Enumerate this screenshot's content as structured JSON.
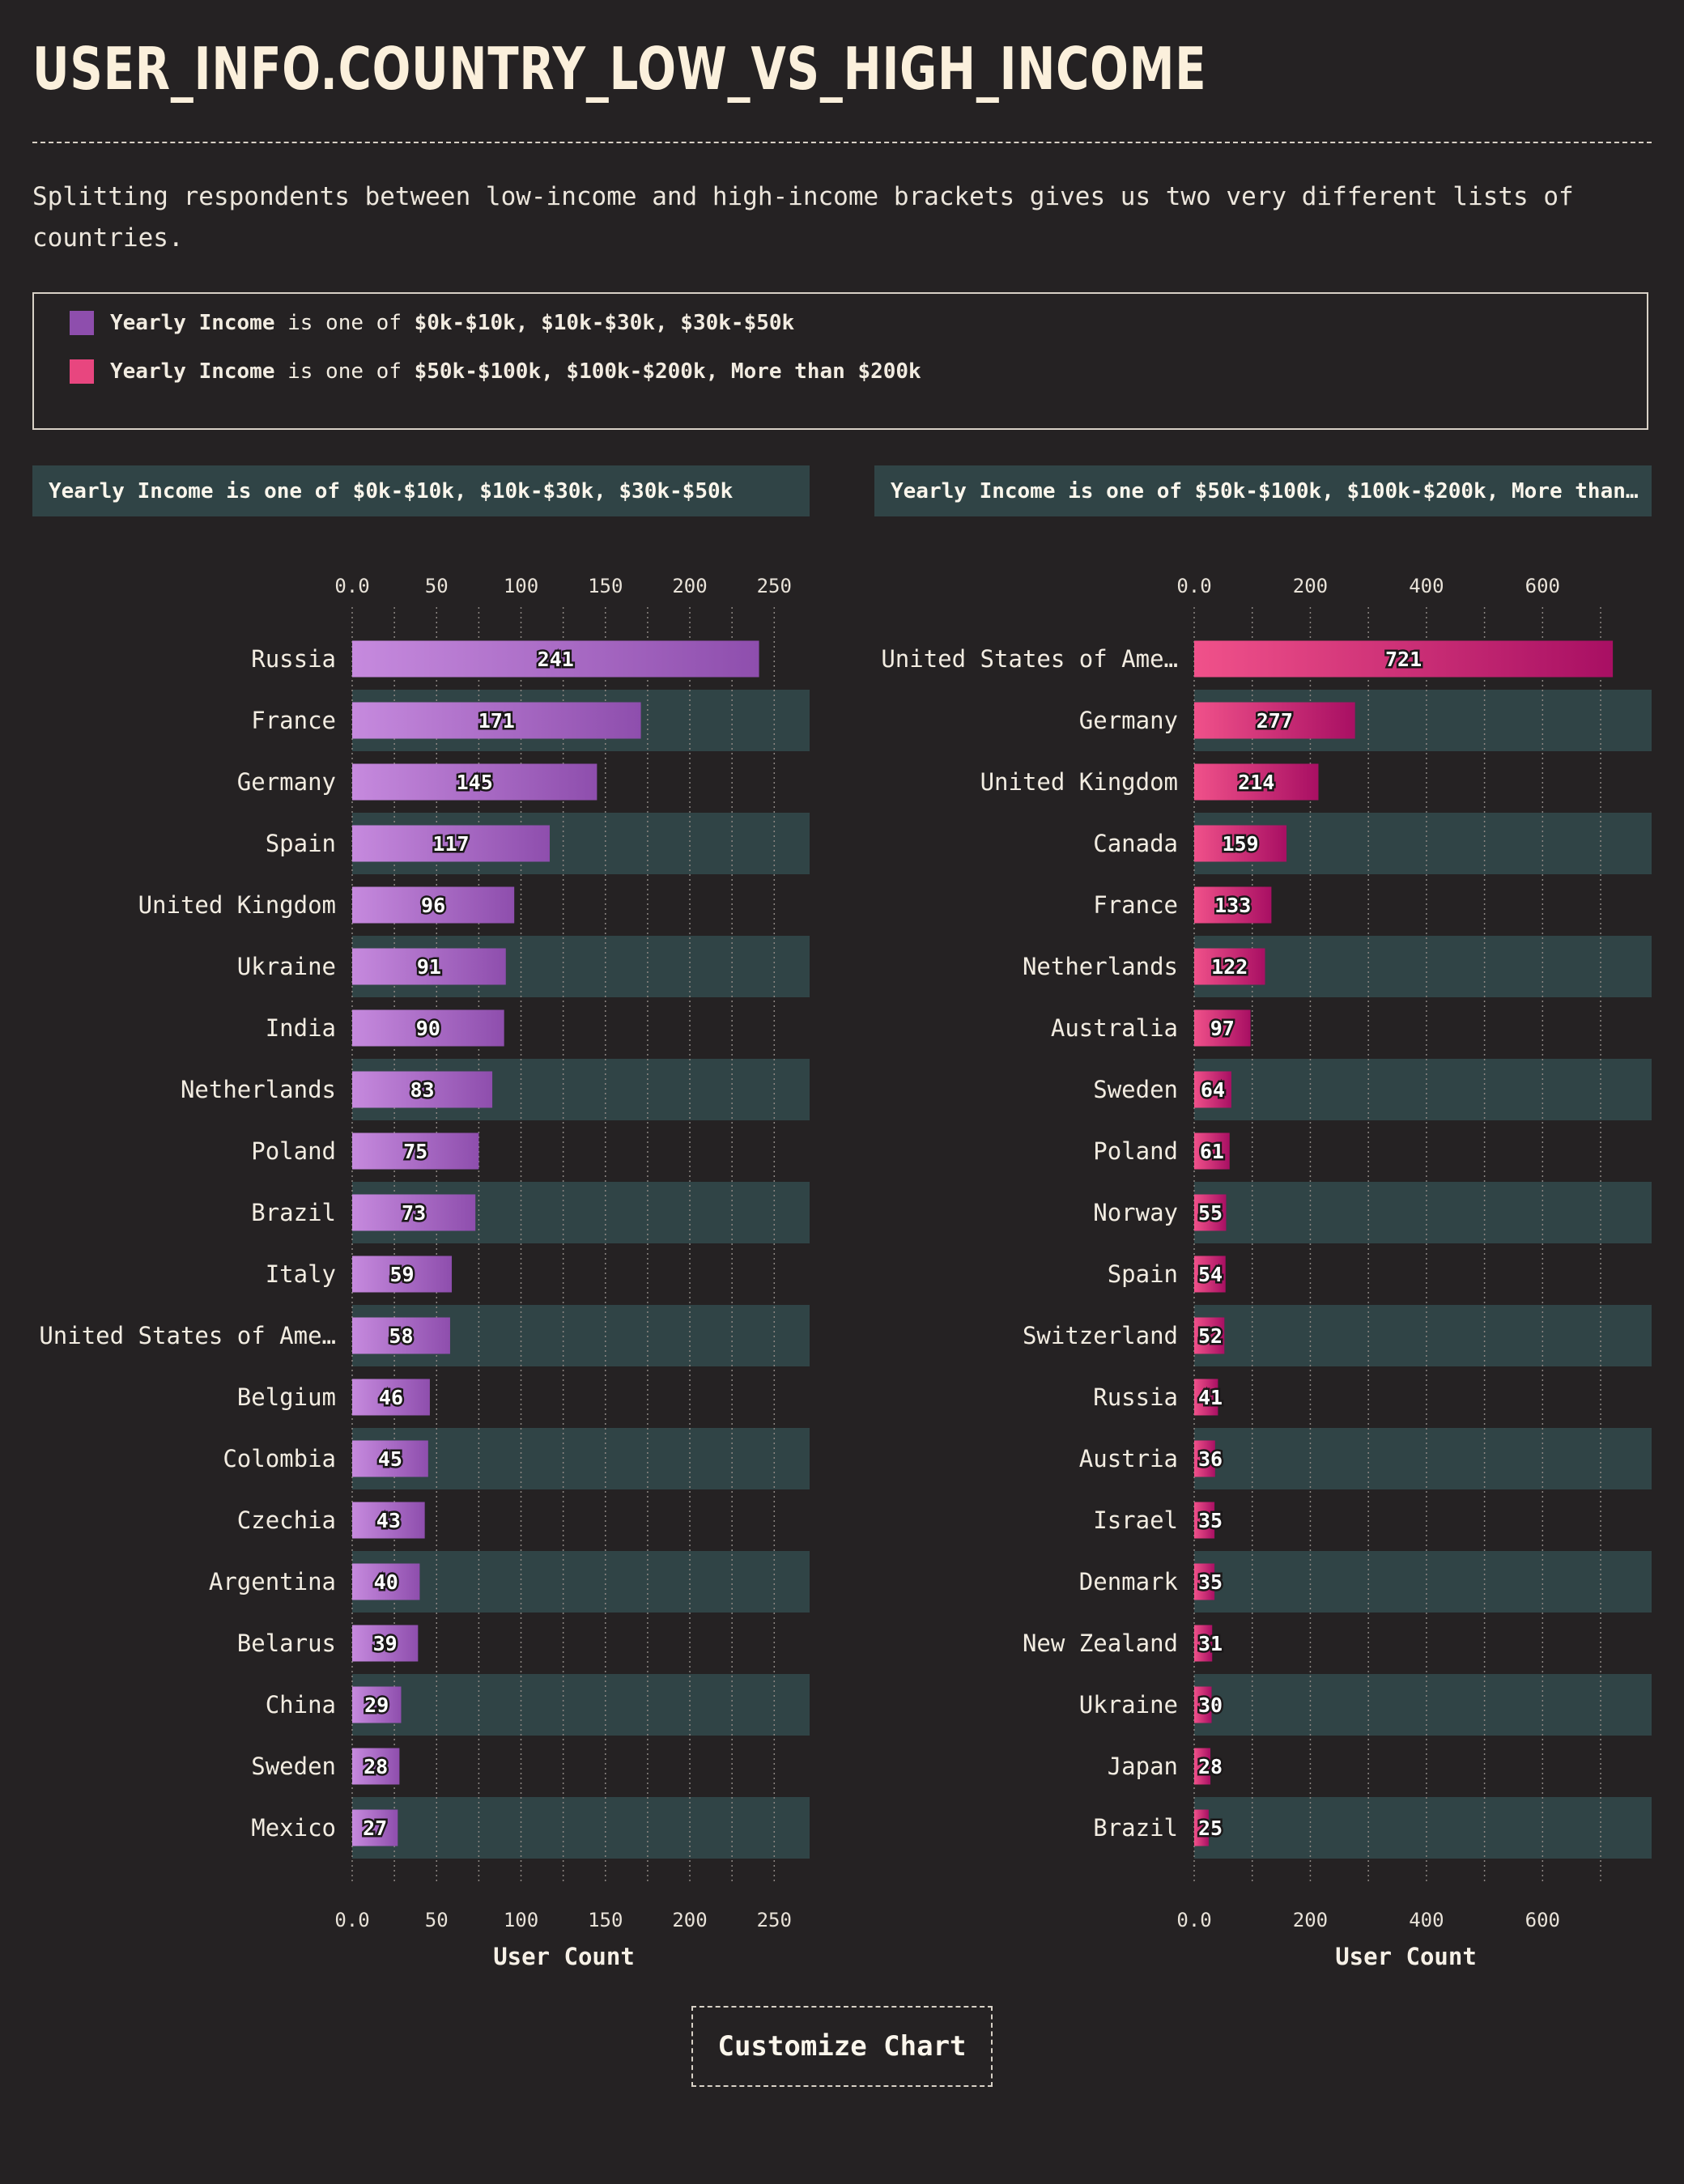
{
  "page": {
    "title": "USER_INFO.COUNTRY_LOW_VS_HIGH_INCOME",
    "description": "Splitting respondents between low-income and high-income brackets gives us two very different lists of countries."
  },
  "legend": {
    "items": [
      {
        "field": "Yearly Income",
        "connector": "is one of",
        "values": "$0k-$10k, $10k-$30k, $30k-$50k",
        "color": "#8e4ead"
      },
      {
        "field": "Yearly Income",
        "connector": "is one of",
        "values": "$50k-$100k, $100k-$200k, More than $200k",
        "color": "#e8467f"
      }
    ]
  },
  "panels": [
    {
      "header": "Yearly Income is one of $0k-$10k, $10k-$30k, $30k-$50k"
    },
    {
      "header": "Yearly Income is one of $50k-$100k, $100k-$200k, More than…"
    }
  ],
  "button": {
    "label": "Customize Chart"
  },
  "chart_data": [
    {
      "type": "bar",
      "orientation": "horizontal",
      "title": "Yearly Income is one of $0k-$10k, $10k-$30k, $30k-$50k",
      "xlabel": "User Count",
      "ylabel": "",
      "xlim": [
        0,
        270
      ],
      "ticks": [
        0,
        50,
        100,
        150,
        200,
        250
      ],
      "tick_labels": [
        "0.0",
        "50",
        "100",
        "150",
        "200",
        "250"
      ],
      "grid": true,
      "categories": [
        "Russia",
        "France",
        "Germany",
        "Spain",
        "United Kingdom",
        "Ukraine",
        "India",
        "Netherlands",
        "Poland",
        "Brazil",
        "Italy",
        "United States of Ame…",
        "Belgium",
        "Colombia",
        "Czechia",
        "Argentina",
        "Belarus",
        "China",
        "Sweden",
        "Mexico"
      ],
      "values": [
        241,
        171,
        145,
        117,
        96,
        91,
        90,
        83,
        75,
        73,
        59,
        58,
        46,
        45,
        43,
        40,
        39,
        29,
        28,
        27
      ],
      "colors": {
        "light": "#c68ade",
        "dark": "#8e4ead"
      }
    },
    {
      "type": "bar",
      "orientation": "horizontal",
      "title": "Yearly Income is one of $50k-$100k, $100k-$200k, More than…",
      "xlabel": "User Count",
      "ylabel": "",
      "xlim": [
        0,
        785
      ],
      "ticks": [
        0,
        200,
        400,
        600
      ],
      "tick_labels": [
        "0.0",
        "200",
        "400",
        "600"
      ],
      "grid": true,
      "categories": [
        "United States of Ame…",
        "Germany",
        "United Kingdom",
        "Canada",
        "France",
        "Netherlands",
        "Australia",
        "Sweden",
        "Poland",
        "Norway",
        "Spain",
        "Switzerland",
        "Russia",
        "Austria",
        "Israel",
        "Denmark",
        "New Zealand",
        "Ukraine",
        "Japan",
        "Brazil"
      ],
      "values": [
        721,
        277,
        214,
        159,
        133,
        122,
        97,
        64,
        61,
        55,
        54,
        52,
        41,
        36,
        35,
        35,
        31,
        30,
        28,
        25
      ],
      "colors": {
        "light": "#f0518a",
        "dark": "#a80f63"
      }
    }
  ]
}
